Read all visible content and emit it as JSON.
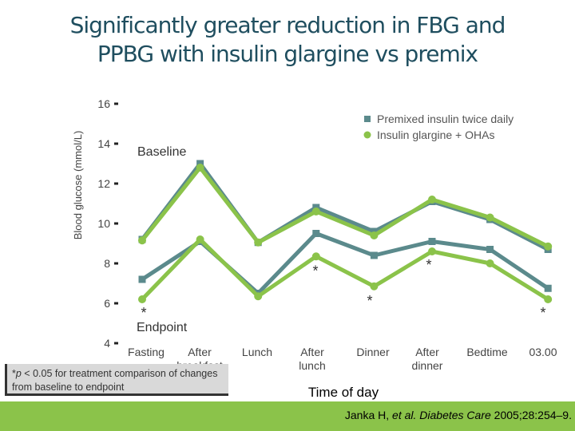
{
  "title_line1": "Significantly greater reduction in FBG and",
  "title_line2": "PPBG with insulin glargine vs premix",
  "chart_data": {
    "type": "line",
    "categories": [
      "Fasting",
      "After breakfast",
      "Lunch",
      "After lunch",
      "Dinner",
      "After dinner",
      "Bedtime",
      "03.00"
    ],
    "xlabel": "Time of day",
    "ylabel": "Blood glucose (mmol/L)",
    "ylim": [
      4,
      16
    ],
    "yticks": [
      4,
      6,
      8,
      10,
      12,
      14,
      16
    ],
    "legend_position": "top-right",
    "legend": [
      "Premixed insulin twice daily",
      "Insulin glargine + OHAs"
    ],
    "series": [
      {
        "name": "Premixed insulin twice daily",
        "group": "Baseline",
        "color": "#5b8a8c",
        "marker": "square",
        "values": [
          9.2,
          13.0,
          9.05,
          10.8,
          9.6,
          11.1,
          10.2,
          8.7
        ]
      },
      {
        "name": "Insulin glargine + OHAs",
        "group": "Baseline",
        "color": "#8bc34a",
        "marker": "circle",
        "values": [
          9.15,
          12.8,
          9.05,
          10.6,
          9.4,
          11.2,
          10.3,
          8.85
        ]
      },
      {
        "name": "Premixed insulin twice daily",
        "group": "Endpoint",
        "color": "#5b8a8c",
        "marker": "square",
        "values": [
          7.2,
          9.1,
          6.5,
          9.5,
          8.4,
          9.1,
          8.7,
          6.75
        ]
      },
      {
        "name": "Insulin glargine + OHAs",
        "group": "Endpoint",
        "color": "#8bc34a",
        "marker": "circle",
        "values": [
          6.2,
          9.2,
          6.35,
          8.35,
          6.85,
          8.6,
          8.0,
          6.2
        ]
      }
    ],
    "annotations": {
      "baseline_label": "Baseline",
      "endpoint_label": "Endpoint",
      "asterisk": "*",
      "asterisk_points": [
        {
          "category": "Fasting",
          "y": 5.6
        },
        {
          "category": "After lunch",
          "y": 7.7
        },
        {
          "category": "Dinner",
          "y": 6.2
        },
        {
          "category": "After dinner",
          "y": 8.0
        },
        {
          "category": "03.00",
          "y": 5.6
        }
      ]
    }
  },
  "footnote": {
    "p": "p",
    "symbol_prefix": "*",
    "text": " < 0.05 for treatment comparison of changes from baseline to endpoint"
  },
  "citation": {
    "authors": "Janka H, ",
    "etal": "et al.",
    "journal": " Diabetes Care",
    "rest": " 2005;28:254–9."
  }
}
